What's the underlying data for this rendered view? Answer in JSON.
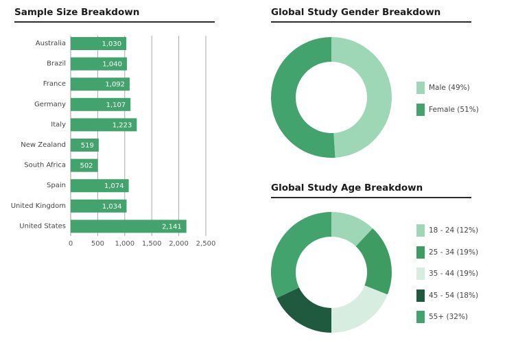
{
  "sample": {
    "title": "Sample Size Breakdown"
  },
  "gender": {
    "title": "Global Study Gender Breakdown"
  },
  "age": {
    "title": "Global Study Age Breakdown"
  },
  "chart_data": [
    {
      "type": "bar",
      "orientation": "horizontal",
      "title": "Sample Size Breakdown",
      "categories": [
        "Australia",
        "Brazil",
        "France",
        "Germany",
        "Italy",
        "New Zealand",
        "South Africa",
        "Spain",
        "United Kingdom",
        "United States"
      ],
      "values": [
        1030,
        1040,
        1092,
        1107,
        1223,
        519,
        502,
        1074,
        1034,
        2141
      ],
      "value_labels": [
        "1,030",
        "1,040",
        "1,092",
        "1,107",
        "1,223",
        "519",
        "502",
        "1,074",
        "1,034",
        "2,141"
      ],
      "xlim": [
        0,
        2500
      ],
      "ticks": [
        0,
        500,
        1000,
        1500,
        2000,
        2500
      ],
      "tick_labels": [
        "0",
        "500",
        "1,000",
        "1,500",
        "2,000",
        "2,500"
      ],
      "color": "#43a36d",
      "grid": true
    },
    {
      "type": "pie",
      "style": "donut",
      "title": "Global Study Gender Breakdown",
      "labels": [
        "Male (49%)",
        "Female (51%)"
      ],
      "values": [
        49,
        51
      ],
      "colors": [
        "#9dd7b5",
        "#43a36d"
      ],
      "legend": "right"
    },
    {
      "type": "pie",
      "style": "donut",
      "title": "Global Study Age Breakdown",
      "labels": [
        "18 - 24 (12%)",
        "25 - 34 (19%)",
        "35 - 44 (19%)",
        "45 - 54 (18%)",
        "55+ (32%)"
      ],
      "values": [
        12,
        19,
        19,
        18,
        32
      ],
      "colors": [
        "#9dd7b5",
        "#3e9c63",
        "#d7ede0",
        "#1f5a3e",
        "#43a36d"
      ],
      "legend": "right"
    }
  ]
}
